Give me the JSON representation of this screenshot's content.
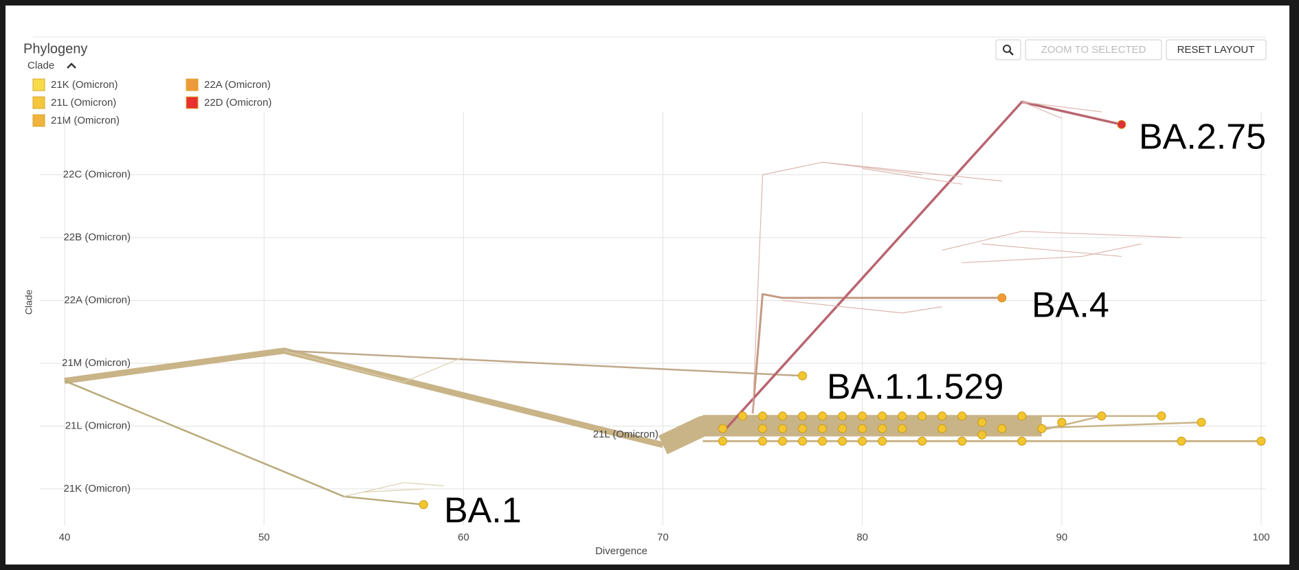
{
  "header": {
    "title": "Phylogeny",
    "legend_title": "Clade",
    "buttons": [
      "ZOOM TO SELECTED",
      "RESET LAYOUT"
    ]
  },
  "legend": [
    {
      "name": "21K (Omicron)",
      "color": "#f6dc4a"
    },
    {
      "name": "21L (Omicron)",
      "color": "#f3c63c"
    },
    {
      "name": "21M (Omicron)",
      "color": "#f0b43c"
    },
    {
      "name": "22A (Omicron)",
      "color": "#ef9a3a"
    },
    {
      "name": "22D (Omicron)",
      "color": "#e8302e"
    }
  ],
  "chart_data": {
    "type": "tree",
    "xlabel": "Divergence",
    "ylabel": "Clade",
    "xlim": [
      40,
      100
    ],
    "xticks": [
      40,
      50,
      60,
      70,
      80,
      90,
      100
    ],
    "ylim": [
      -0.58,
      6.0
    ],
    "yticks": [
      {
        "value": 0,
        "label": "21K (Omicron)"
      },
      {
        "value": 1,
        "label": "21L (Omicron)"
      },
      {
        "value": 2,
        "label": "21M (Omicron)"
      },
      {
        "value": 3,
        "label": "22A (Omicron)"
      },
      {
        "value": 4,
        "label": "22B (Omicron)"
      },
      {
        "value": 5,
        "label": "22C (Omicron)"
      }
    ],
    "grid": true,
    "branches": [
      {
        "x": [
          40,
          51,
          70
        ],
        "y": [
          1.72,
          2.2,
          0.7
        ],
        "color": "#c9b488",
        "width": 9
      },
      {
        "x": [
          70,
          72,
          89
        ],
        "y": [
          0.7,
          1.0,
          1.0
        ],
        "color": "#c9b488",
        "width": 30
      },
      {
        "x": [
          40,
          54,
          58
        ],
        "y": [
          1.72,
          -0.12,
          -0.25
        ],
        "color": "#b8aa78",
        "width": 2.5
      },
      {
        "x": [
          51,
          77
        ],
        "y": [
          2.2,
          1.8
        ],
        "color": "#bfa98a",
        "width": 2.5
      },
      {
        "x": [
          72,
          88
        ],
        "y": [
          1.16,
          1.16
        ],
        "color": "#c9b488",
        "width": 3
      },
      {
        "x": [
          72,
          100
        ],
        "y": [
          0.76,
          0.76
        ],
        "color": "#c9b488",
        "width": 3
      },
      {
        "x": [
          88,
          97
        ],
        "y": [
          0.96,
          1.06
        ],
        "color": "#c9b488",
        "width": 2.5
      },
      {
        "x": [
          88,
          95
        ],
        "y": [
          1.16,
          1.16
        ],
        "color": "#c9b488",
        "width": 2.5
      },
      {
        "x": [
          88,
          92
        ],
        "y": [
          0.86,
          1.16
        ],
        "color": "#c9b488",
        "width": 2.5
      },
      {
        "x": [
          74.5,
          75,
          76,
          87
        ],
        "y": [
          1.2,
          3.1,
          3.04,
          3.04
        ],
        "color": "#c39a82",
        "width": 3
      },
      {
        "x": [
          73,
          88,
          93
        ],
        "y": [
          0.9,
          6.16,
          5.8
        ],
        "color": "#b8656f",
        "width": 3.5
      },
      {
        "x": [
          74.5,
          75,
          78,
          87
        ],
        "y": [
          1.2,
          5.0,
          5.2,
          4.9
        ],
        "color": "#dcb6ae",
        "width": 1.2
      },
      {
        "x": [
          78,
          83
        ],
        "y": [
          5.2,
          5.0
        ],
        "color": "#dcb6ae",
        "width": 1.2
      },
      {
        "x": [
          80,
          85
        ],
        "y": [
          5.1,
          4.85
        ],
        "color": "#dcb6ae",
        "width": 1.2
      },
      {
        "x": [
          84,
          88,
          96
        ],
        "y": [
          3.8,
          4.1,
          4.0
        ],
        "color": "#dcb6ae",
        "width": 1.2
      },
      {
        "x": [
          85,
          91,
          94
        ],
        "y": [
          3.6,
          3.7,
          3.9
        ],
        "color": "#dcb6ae",
        "width": 1.2
      },
      {
        "x": [
          86,
          93
        ],
        "y": [
          3.9,
          3.7
        ],
        "color": "#dcb6ae",
        "width": 1.2
      },
      {
        "x": [
          76,
          82,
          84
        ],
        "y": [
          3.0,
          2.8,
          2.9
        ],
        "color": "#dcb6ae",
        "width": 1.2
      },
      {
        "x": [
          88,
          90
        ],
        "y": [
          6.16,
          5.9
        ],
        "color": "#dcb6ae",
        "width": 1.2
      },
      {
        "x": [
          88,
          92
        ],
        "y": [
          6.16,
          6.0
        ],
        "color": "#dcb6ae",
        "width": 1.2
      },
      {
        "x": [
          54,
          57,
          59
        ],
        "y": [
          -0.12,
          0.1,
          0.05
        ],
        "color": "#d9d0b0",
        "width": 1.2
      },
      {
        "x": [
          55,
          58
        ],
        "y": [
          -0.05,
          0.0
        ],
        "color": "#d9d0b0",
        "width": 1.2
      },
      {
        "x": [
          51,
          57,
          60
        ],
        "y": [
          2.2,
          1.7,
          2.1
        ],
        "color": "#d9d0b0",
        "width": 1.2
      }
    ],
    "tips": [
      {
        "color": "#f3c530",
        "x": [
          73,
          73,
          74,
          75,
          75,
          75,
          76,
          76,
          76,
          77,
          77,
          77,
          78,
          78,
          78,
          79,
          79,
          79,
          80,
          80,
          80,
          81,
          81,
          81,
          82,
          82,
          83,
          83,
          84,
          84,
          85,
          85,
          86,
          86,
          87,
          88,
          88,
          89,
          90,
          92,
          95,
          96,
          97,
          100,
          58,
          77
        ],
        "y": [
          0.96,
          0.76,
          1.16,
          1.16,
          0.96,
          0.76,
          1.16,
          0.96,
          0.76,
          1.16,
          0.96,
          0.76,
          1.16,
          0.96,
          0.76,
          1.16,
          0.96,
          0.76,
          1.16,
          0.96,
          0.76,
          1.16,
          0.96,
          0.76,
          1.16,
          0.96,
          1.16,
          0.76,
          1.16,
          0.96,
          1.16,
          0.76,
          1.06,
          0.86,
          0.96,
          1.16,
          0.76,
          0.96,
          1.06,
          1.16,
          1.16,
          0.76,
          1.06,
          0.76,
          -0.25,
          1.8
        ]
      },
      {
        "color": "#ef9a3a",
        "x": [
          87
        ],
        "y": [
          3.04
        ]
      },
      {
        "color": "#e0303a",
        "x": [
          93
        ],
        "y": [
          5.8
        ]
      }
    ],
    "annotations": [
      "BA.2.75",
      "BA.4",
      "BA.1.1.529",
      "BA.1",
      "21L (Omicron)"
    ]
  }
}
